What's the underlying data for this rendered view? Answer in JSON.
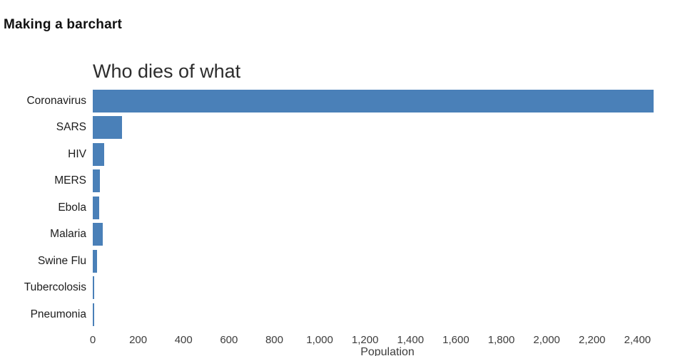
{
  "page": {
    "title": "Making a barchart"
  },
  "chart_data": {
    "type": "bar",
    "orientation": "horizontal",
    "title": "Who dies of what",
    "xlabel": "Population",
    "categories": [
      "Coronavirus",
      "SARS",
      "HIV",
      "MERS",
      "Ebola",
      "Malaria",
      "Swine Flu",
      "Tubercolosis",
      "Pneumonia"
    ],
    "values": [
      2470,
      130,
      50,
      30,
      28,
      45,
      18,
      5,
      4
    ],
    "xlim": [
      0,
      2600
    ],
    "xticks": [
      0,
      200,
      400,
      600,
      800,
      1000,
      1200,
      1400,
      1600,
      1800,
      2000,
      2200,
      2400
    ],
    "xtick_labels": [
      "0",
      "200",
      "400",
      "600",
      "800",
      "1,000",
      "1,200",
      "1,400",
      "1,600",
      "1,800",
      "2,000",
      "2,200",
      "2,400"
    ],
    "bar_color": "#4a80b8",
    "grid": false,
    "legend": "none",
    "background": "#ffffff"
  }
}
